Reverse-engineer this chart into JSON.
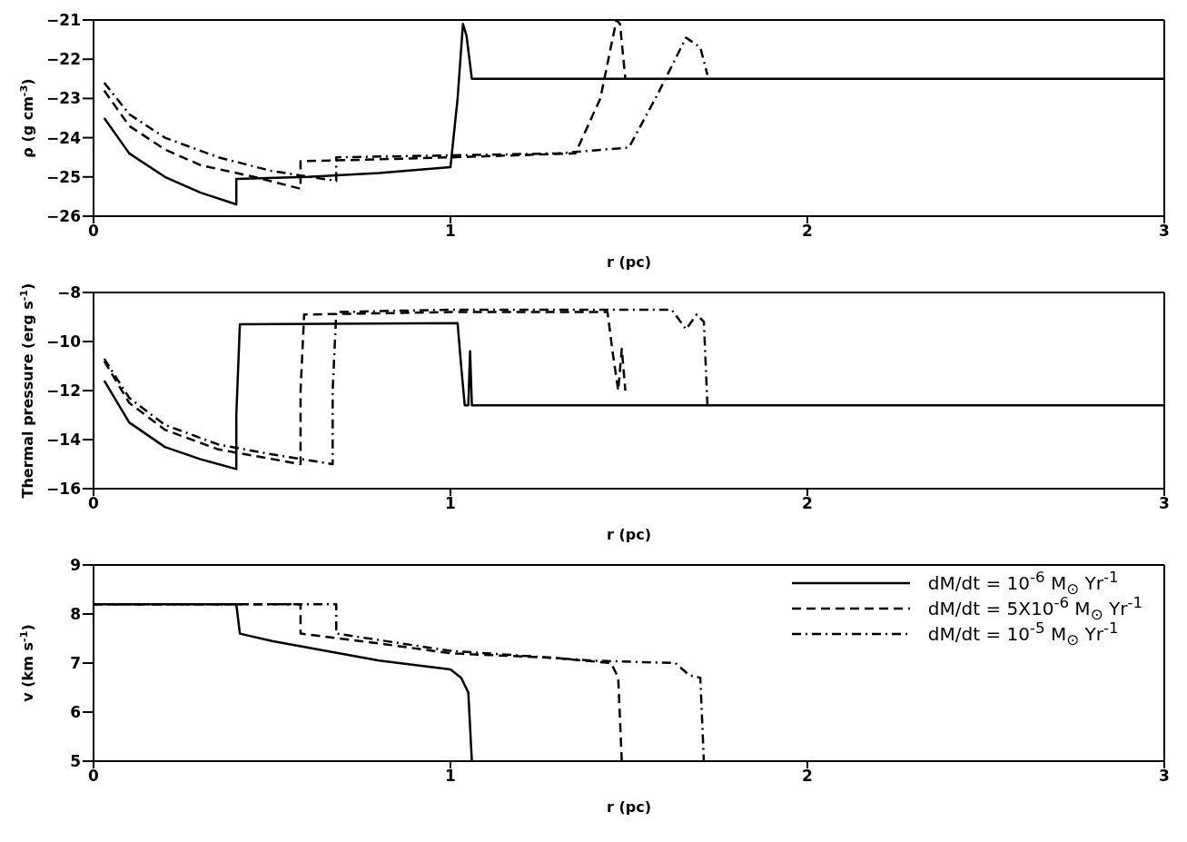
{
  "chart_data": [
    {
      "type": "line",
      "xlabel": "r (pc)",
      "ylabel": "ρ (g cm$^{-3}$)",
      "xlim": [
        0,
        3
      ],
      "xticks": [
        0,
        1,
        2,
        3
      ],
      "ylim": [
        -26,
        -21
      ],
      "yticks": [
        -26,
        -25,
        -24,
        -23,
        -22,
        -21
      ],
      "legend": false,
      "marker": "none",
      "series": [
        {
          "color": "#000000",
          "line_style": "solid",
          "x": [
            0.03,
            0.1,
            0.2,
            0.3,
            0.4,
            0.4,
            0.6,
            0.8,
            1.0,
            1.02,
            1.035,
            1.045,
            1.06,
            1.5,
            2.0,
            3.0
          ],
          "values": [
            -23.5,
            -24.4,
            -25.0,
            -25.4,
            -25.7,
            -25.05,
            -25.0,
            -24.9,
            -24.75,
            -23.0,
            -21.1,
            -21.4,
            -22.5,
            -22.5,
            -22.5,
            -22.5
          ]
        },
        {
          "color": "#000000",
          "line_style": "dashed",
          "x": [
            0.03,
            0.1,
            0.2,
            0.3,
            0.45,
            0.58,
            0.58,
            0.8,
            1.0,
            1.35,
            1.42,
            1.465,
            1.475,
            1.49
          ],
          "values": [
            -22.8,
            -23.7,
            -24.3,
            -24.7,
            -25.0,
            -25.3,
            -24.6,
            -24.55,
            -24.5,
            -24.4,
            -23.0,
            -21.0,
            -21.1,
            -22.5
          ]
        },
        {
          "color": "#000000",
          "line_style": "dashdot",
          "x": [
            0.03,
            0.1,
            0.2,
            0.35,
            0.5,
            0.68,
            0.68,
            1.0,
            1.3,
            1.5,
            1.58,
            1.66,
            1.7,
            1.72
          ],
          "values": [
            -22.6,
            -23.4,
            -24.0,
            -24.5,
            -24.85,
            -25.1,
            -24.5,
            -24.45,
            -24.4,
            -24.25,
            -22.9,
            -21.45,
            -21.7,
            -22.4
          ]
        }
      ]
    },
    {
      "type": "line",
      "xlabel": "r (pc)",
      "ylabel": "Thermal pressure (erg s$^{-1}$)",
      "xlim": [
        0,
        3
      ],
      "xticks": [
        0,
        1,
        2,
        3
      ],
      "ylim": [
        -16,
        -8
      ],
      "yticks": [
        -16,
        -14,
        -12,
        -10,
        -8
      ],
      "legend": false,
      "marker": "none",
      "series": [
        {
          "color": "#000000",
          "line_style": "solid",
          "x": [
            0.03,
            0.1,
            0.2,
            0.3,
            0.4,
            0.4,
            0.41,
            1.02,
            1.03,
            1.04,
            1.05,
            1.055,
            1.06,
            1.07,
            2.0,
            3.0
          ],
          "values": [
            -11.6,
            -13.3,
            -14.3,
            -14.8,
            -15.2,
            -13.0,
            -9.3,
            -9.25,
            -11.0,
            -12.6,
            -12.6,
            -10.4,
            -12.6,
            -12.6,
            -12.6,
            -12.6
          ]
        },
        {
          "color": "#000000",
          "line_style": "dashed",
          "x": [
            0.03,
            0.1,
            0.2,
            0.35,
            0.58,
            0.58,
            0.59,
            1.0,
            1.44,
            1.455,
            1.47,
            1.48,
            1.49
          ],
          "values": [
            -10.8,
            -12.5,
            -13.6,
            -14.4,
            -15.0,
            -12.0,
            -8.9,
            -8.8,
            -8.8,
            -10.5,
            -12.0,
            -10.3,
            -12.0
          ]
        },
        {
          "color": "#000000",
          "line_style": "dashdot",
          "x": [
            0.03,
            0.1,
            0.2,
            0.35,
            0.5,
            0.67,
            0.67,
            0.68,
            1.0,
            1.62,
            1.66,
            1.69,
            1.71,
            1.72
          ],
          "values": [
            -10.7,
            -12.3,
            -13.4,
            -14.2,
            -14.6,
            -15.0,
            -12.0,
            -8.8,
            -8.7,
            -8.7,
            -9.5,
            -8.9,
            -9.2,
            -12.6
          ]
        }
      ]
    },
    {
      "type": "line",
      "xlabel": "r (pc)",
      "ylabel": "v (km s$^{-1}$)",
      "xlim": [
        0,
        3
      ],
      "xticks": [
        0,
        1,
        2,
        3
      ],
      "ylim": [
        5,
        9
      ],
      "yticks": [
        5,
        6,
        7,
        8,
        9
      ],
      "legend": "top right",
      "marker": "none",
      "series": [
        {
          "name": "dM/dt = 10$^{-6}$ M$_{⊙}$ Yr$^{-1}$",
          "color": "#000000",
          "line_style": "solid",
          "x": [
            0,
            0.4,
            0.41,
            0.5,
            0.65,
            0.8,
            1.0,
            1.03,
            1.05,
            1.06
          ],
          "values": [
            8.2,
            8.2,
            7.6,
            7.45,
            7.25,
            7.05,
            6.87,
            6.7,
            6.4,
            5.0
          ]
        },
        {
          "name": "dM/dt = 5X10$^{-6}$ M$_{⊙}$ Yr$^{-1}$",
          "color": "#000000",
          "line_style": "dashed",
          "x": [
            0,
            0.58,
            0.58,
            0.8,
            1.0,
            1.3,
            1.45,
            1.47,
            1.48
          ],
          "values": [
            8.2,
            8.2,
            7.6,
            7.4,
            7.2,
            7.1,
            7.0,
            6.7,
            5.0
          ]
        },
        {
          "name": "dM/dt = 10$^{-5}$ M$_{⊙}$ Yr$^{-1}$",
          "color": "#000000",
          "line_style": "dashdot",
          "x": [
            0,
            0.68,
            0.68,
            1.0,
            1.4,
            1.63,
            1.67,
            1.7,
            1.71
          ],
          "values": [
            8.2,
            8.2,
            7.6,
            7.25,
            7.05,
            7.0,
            6.75,
            6.7,
            5.0
          ]
        }
      ]
    }
  ]
}
